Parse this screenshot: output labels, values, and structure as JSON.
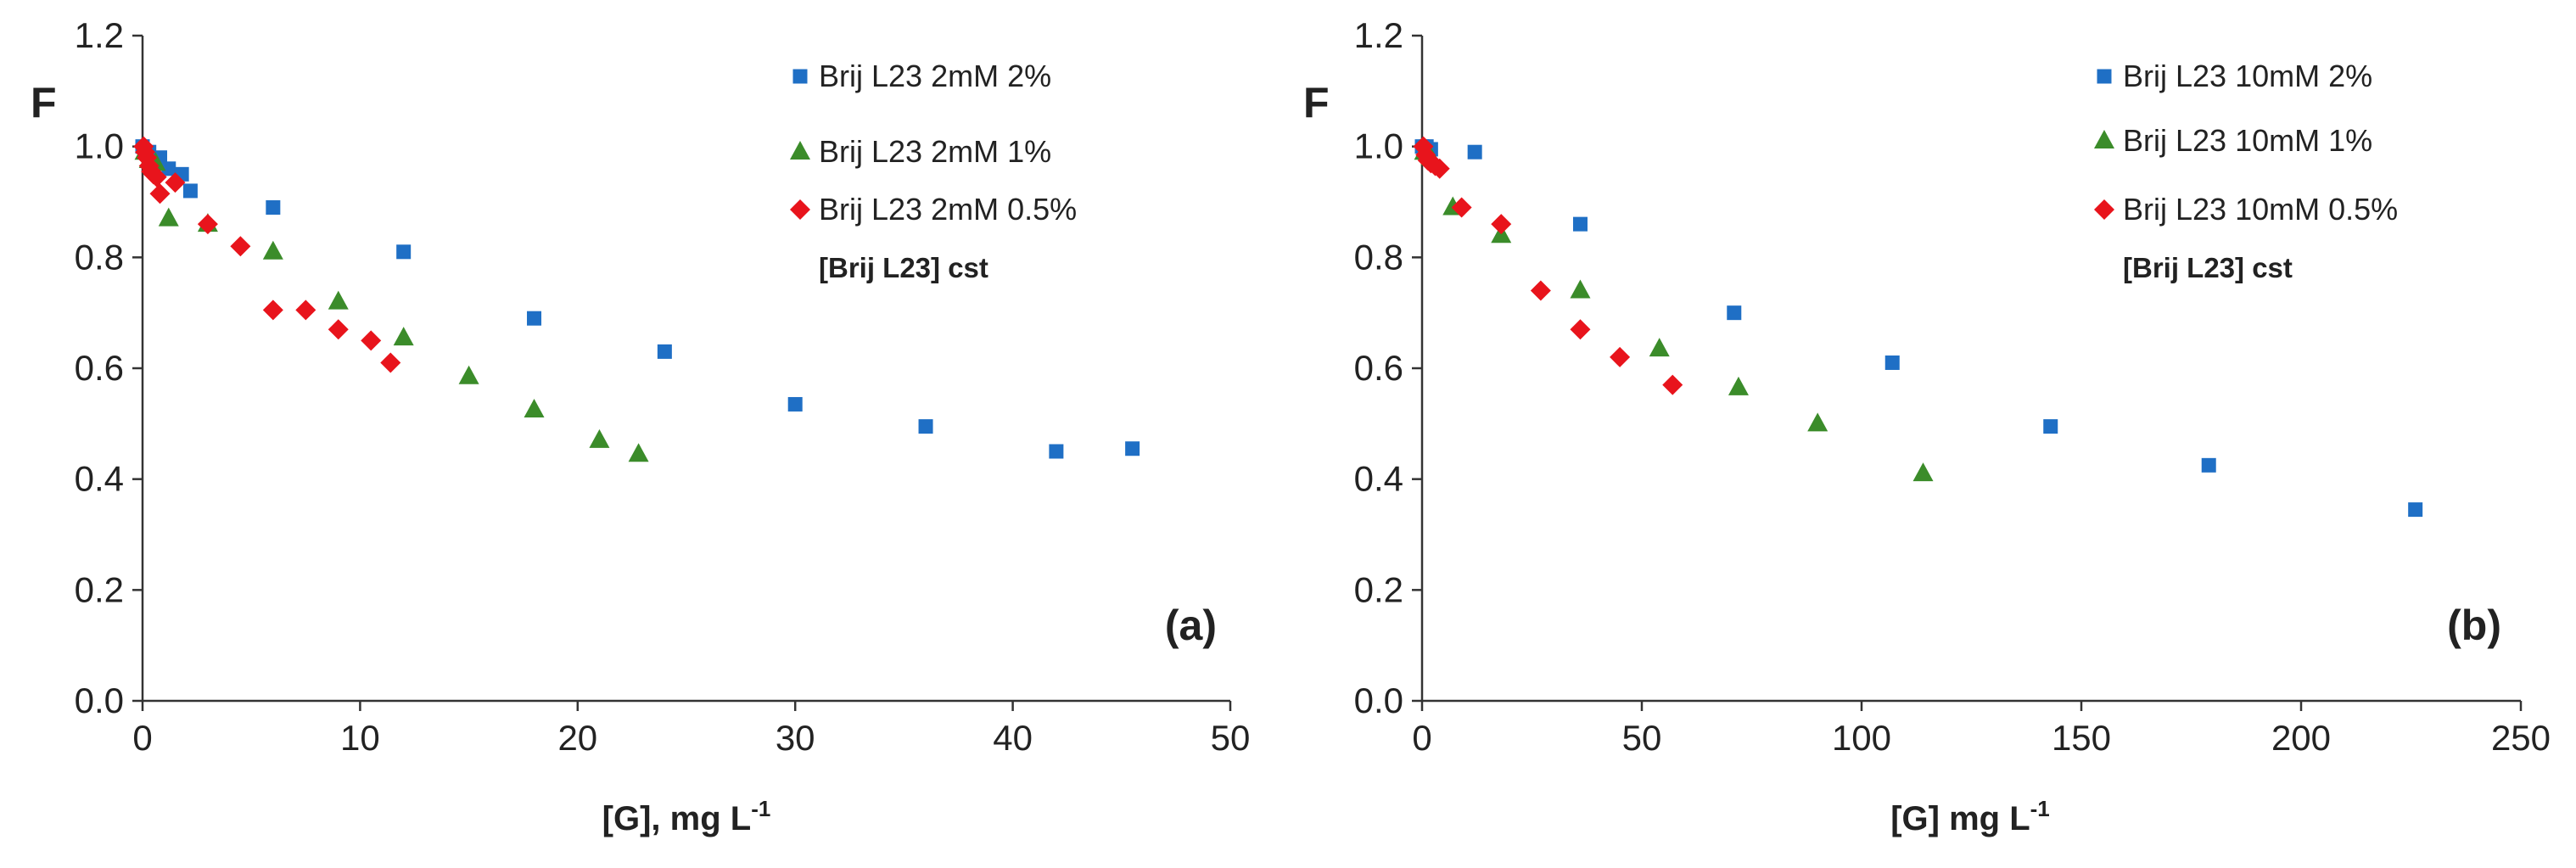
{
  "chart_data": [
    {
      "type": "scatter",
      "panel_label": "(a)",
      "ylabel": "F",
      "xlabel": "[G], mg L",
      "xlabel_sup": "-1",
      "xlim": [
        0,
        50
      ],
      "ylim": [
        0.0,
        1.2
      ],
      "xticks": [
        0,
        10,
        20,
        30,
        40,
        50
      ],
      "yticks": [
        "0.0",
        "0.2",
        "0.4",
        "0.6",
        "0.8",
        "1.0",
        "1.2"
      ],
      "legend_position": "top-right",
      "annotation": "[Brij L23] cst",
      "series": [
        {
          "name": "Brij L23 2mM 2%",
          "marker": "square",
          "color": "#1f6fc5",
          "points": [
            [
              0,
              1.0
            ],
            [
              0.3,
              0.99
            ],
            [
              0.8,
              0.98
            ],
            [
              1.2,
              0.96
            ],
            [
              1.8,
              0.95
            ],
            [
              2.2,
              0.92
            ],
            [
              6,
              0.89
            ],
            [
              12,
              0.81
            ],
            [
              18,
              0.69
            ],
            [
              24,
              0.63
            ],
            [
              30,
              0.535
            ],
            [
              36,
              0.495
            ],
            [
              42,
              0.45
            ],
            [
              45.5,
              0.455
            ]
          ]
        },
        {
          "name": "Brij L23 2mM 1%",
          "marker": "triangle",
          "color": "#3b8c2a",
          "points": [
            [
              0.1,
              0.99
            ],
            [
              0.3,
              0.975
            ],
            [
              0.6,
              0.97
            ],
            [
              1.2,
              0.87
            ],
            [
              3,
              0.86
            ],
            [
              6,
              0.81
            ],
            [
              9,
              0.72
            ],
            [
              12,
              0.655
            ],
            [
              15,
              0.585
            ],
            [
              18,
              0.525
            ],
            [
              21,
              0.47
            ],
            [
              22.8,
              0.445
            ]
          ]
        },
        {
          "name": "Brij L23 2mM 0.5%",
          "marker": "diamond",
          "color": "#e8141c",
          "points": [
            [
              0.05,
              1.0
            ],
            [
              0.12,
              0.99
            ],
            [
              0.2,
              0.98
            ],
            [
              0.3,
              0.965
            ],
            [
              0.4,
              0.955
            ],
            [
              0.5,
              0.95
            ],
            [
              0.65,
              0.945
            ],
            [
              0.8,
              0.915
            ],
            [
              1.5,
              0.935
            ],
            [
              3,
              0.86
            ],
            [
              4.5,
              0.82
            ],
            [
              6,
              0.705
            ],
            [
              7.5,
              0.705
            ],
            [
              9,
              0.67
            ],
            [
              10.5,
              0.65
            ],
            [
              11.4,
              0.61
            ]
          ]
        }
      ]
    },
    {
      "type": "scatter",
      "panel_label": "(b)",
      "ylabel": "F",
      "xlabel": "[G] mg L",
      "xlabel_sup": "-1",
      "xlim": [
        0,
        250
      ],
      "ylim": [
        0.0,
        1.2
      ],
      "xticks": [
        0,
        50,
        100,
        150,
        200,
        250
      ],
      "yticks": [
        "0.0",
        "0.2",
        "0.4",
        "0.6",
        "0.8",
        "1.0",
        "1.2"
      ],
      "legend_position": "top-right",
      "annotation": "[Brij L23] cst",
      "series": [
        {
          "name": "Brij L23 10mM 2%",
          "marker": "square",
          "color": "#1f6fc5",
          "points": [
            [
              0,
              1.0
            ],
            [
              1,
              1.0
            ],
            [
              2,
              0.995
            ],
            [
              12,
              0.99
            ],
            [
              36,
              0.86
            ],
            [
              71,
              0.7
            ],
            [
              107,
              0.61
            ],
            [
              143,
              0.495
            ],
            [
              179,
              0.425
            ],
            [
              226,
              0.345
            ]
          ]
        },
        {
          "name": "Brij L23 10mM  1%",
          "marker": "triangle",
          "color": "#3b8c2a",
          "points": [
            [
              0.5,
              0.99
            ],
            [
              2,
              0.98
            ],
            [
              7,
              0.89
            ],
            [
              18,
              0.84
            ],
            [
              36,
              0.74
            ],
            [
              54,
              0.635
            ],
            [
              72,
              0.565
            ],
            [
              90,
              0.5
            ],
            [
              114,
              0.41
            ]
          ]
        },
        {
          "name": "Brij L23 10mM  0.5%",
          "marker": "diamond",
          "color": "#e8141c",
          "points": [
            [
              0.3,
              1.0
            ],
            [
              0.8,
              0.985
            ],
            [
              1.3,
              0.975
            ],
            [
              2,
              0.97
            ],
            [
              3,
              0.965
            ],
            [
              4,
              0.96
            ],
            [
              9,
              0.89
            ],
            [
              18,
              0.86
            ],
            [
              27,
              0.74
            ],
            [
              36,
              0.67
            ],
            [
              45,
              0.62
            ],
            [
              57,
              0.57
            ]
          ]
        }
      ]
    }
  ]
}
